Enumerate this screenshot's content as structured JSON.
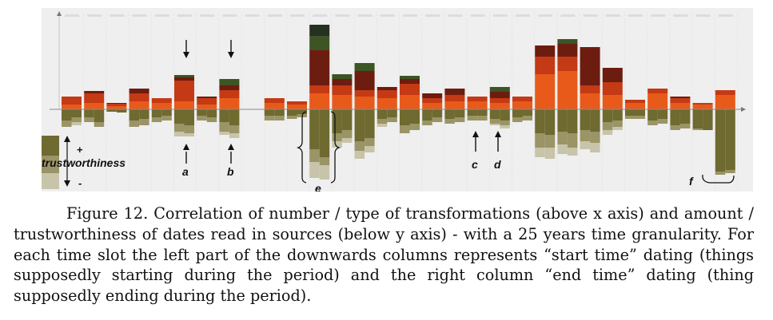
{
  "figure": {
    "legend": {
      "label": "trustworthiness",
      "plus": "+",
      "minus": "-"
    },
    "annotations": [
      "a",
      "b",
      "c",
      "d",
      "e",
      "f"
    ],
    "colors": {
      "above": [
        "#e85a1a",
        "#c43a14",
        "#6d1c10",
        "#3d5424",
        "#263021"
      ],
      "below": [
        "#6e6a30",
        "#9a9466",
        "#c8c4aa"
      ],
      "panel": "#efefef"
    },
    "chart_data": {
      "type": "bar",
      "description_stacks_above": "transformations (5 type colors, bottom to top: orange, red, dark red, green, dark green)",
      "description_stacks_below": "dates read in sources (3 trust levels: high, medium, low)",
      "slots": [
        {
          "above": [
            6,
            10,
            0,
            0,
            0
          ],
          "below_start": [
            14,
            8,
            0
          ],
          "below_end": [
            10,
            6,
            4
          ]
        },
        {
          "above": [
            8,
            12,
            3,
            0,
            0
          ],
          "below_start": [
            10,
            6,
            0
          ],
          "below_end": [
            16,
            6,
            0
          ]
        },
        {
          "above": [
            4,
            3,
            1,
            0,
            0
          ],
          "below_start": [
            3,
            0,
            0
          ],
          "below_end": [
            4,
            0,
            0
          ]
        },
        {
          "above": [
            10,
            10,
            6,
            0,
            0
          ],
          "below_start": [
            14,
            8,
            0
          ],
          "below_end": [
            12,
            8,
            0
          ]
        },
        {
          "above": [
            8,
            6,
            0,
            0,
            0
          ],
          "below_start": [
            10,
            6,
            0
          ],
          "below_end": [
            8,
            6,
            0
          ]
        },
        {
          "above": [
            10,
            26,
            4,
            3,
            0
          ],
          "below_start": [
            18,
            10,
            6
          ],
          "below_end": [
            20,
            10,
            4
          ]
        },
        {
          "above": [
            6,
            8,
            2,
            0,
            0
          ],
          "below_start": [
            8,
            6,
            0
          ],
          "below_end": [
            10,
            6,
            0
          ]
        },
        {
          "above": [
            14,
            10,
            6,
            8,
            0
          ],
          "below_start": [
            16,
            12,
            4
          ],
          "below_end": [
            20,
            10,
            6
          ]
        },
        {
          "above": [
            0,
            0,
            0,
            0,
            0
          ],
          "below_start": [
            0,
            0,
            0
          ],
          "below_end": [
            0,
            0,
            0
          ]
        },
        {
          "above": [
            8,
            6,
            0,
            0,
            0
          ],
          "below_start": [
            8,
            6,
            0
          ],
          "below_end": [
            8,
            6,
            0
          ]
        },
        {
          "above": [
            6,
            4,
            0,
            0,
            0
          ],
          "below_start": [
            8,
            4,
            0
          ],
          "below_end": [
            6,
            4,
            0
          ]
        },
        {
          "above": [
            20,
            10,
            44,
            18,
            14
          ],
          "below_start": [
            50,
            16,
            20
          ],
          "below_end": [
            60,
            10,
            18
          ]
        },
        {
          "above": [
            18,
            12,
            8,
            6,
            0
          ],
          "below_start": [
            30,
            10,
            8
          ],
          "below_end": [
            26,
            10,
            6
          ]
        },
        {
          "above": [
            16,
            8,
            24,
            10,
            0
          ],
          "below_start": [
            40,
            12,
            10
          ],
          "below_end": [
            36,
            10,
            8
          ]
        },
        {
          "above": [
            14,
            10,
            4,
            0,
            0
          ],
          "below_start": [
            12,
            6,
            4
          ],
          "below_end": [
            10,
            6,
            0
          ]
        },
        {
          "above": [
            18,
            14,
            6,
            4,
            0
          ],
          "below_start": [
            20,
            10,
            0
          ],
          "below_end": [
            18,
            8,
            0
          ]
        },
        {
          "above": [
            8,
            6,
            6,
            0,
            0
          ],
          "below_start": [
            14,
            6,
            0
          ],
          "below_end": [
            10,
            6,
            0
          ]
        },
        {
          "above": [
            10,
            8,
            8,
            0,
            0
          ],
          "below_start": [
            12,
            6,
            0
          ],
          "below_end": [
            10,
            6,
            0
          ]
        },
        {
          "above": [
            10,
            6,
            0,
            0,
            0
          ],
          "below_start": [
            8,
            6,
            0
          ],
          "below_end": [
            8,
            6,
            0
          ]
        },
        {
          "above": [
            8,
            6,
            8,
            6,
            0
          ],
          "below_start": [
            12,
            6,
            2
          ],
          "below_end": [
            14,
            6,
            4
          ]
        },
        {
          "above": [
            10,
            6,
            0,
            0,
            0
          ],
          "below_start": [
            10,
            6,
            0
          ],
          "below_end": [
            8,
            6,
            0
          ]
        },
        {
          "above": [
            44,
            22,
            14,
            0,
            0
          ],
          "below_start": [
            30,
            18,
            12
          ],
          "below_end": [
            32,
            16,
            14
          ]
        },
        {
          "above": [
            48,
            18,
            16,
            6,
            0
          ],
          "below_start": [
            28,
            16,
            12
          ],
          "below_end": [
            30,
            18,
            10
          ]
        },
        {
          "above": [
            20,
            10,
            48,
            0,
            0
          ],
          "below_start": [
            26,
            14,
            10
          ],
          "below_end": [
            28,
            14,
            12
          ]
        },
        {
          "above": [
            18,
            16,
            18,
            0,
            0
          ],
          "below_start": [
            16,
            10,
            6
          ],
          "below_end": [
            14,
            8,
            4
          ]
        },
        {
          "above": [
            8,
            4,
            0,
            0,
            0
          ],
          "below_start": [
            8,
            4,
            0
          ],
          "below_end": [
            8,
            4,
            0
          ]
        },
        {
          "above": [
            20,
            6,
            0,
            0,
            0
          ],
          "below_start": [
            14,
            6,
            0
          ],
          "below_end": [
            12,
            6,
            0
          ]
        },
        {
          "above": [
            8,
            6,
            2,
            0,
            0
          ],
          "below_start": [
            20,
            6,
            0
          ],
          "below_end": [
            18,
            6,
            0
          ]
        },
        {
          "above": [
            6,
            2,
            0,
            0,
            0
          ],
          "below_start": [
            24,
            2,
            0
          ],
          "below_end": [
            26,
            0,
            0
          ]
        },
        {
          "above": [
            18,
            6,
            0,
            0,
            0
          ],
          "below_start": [
            78,
            4,
            0
          ],
          "below_end": [
            76,
            4,
            0
          ]
        }
      ]
    }
  },
  "caption": {
    "p1": "Figure 12. Correlation of number / type of transformations (above x axis) and amount / trustworthiness of dates read in sources (below y axis) - with a 25 years time granularity. For each time slot the left part of the downwards columns represents “start time” dating (things supposedly starting during the period) and the right column “end time” dating (thing supposedly ending during the period)."
  }
}
